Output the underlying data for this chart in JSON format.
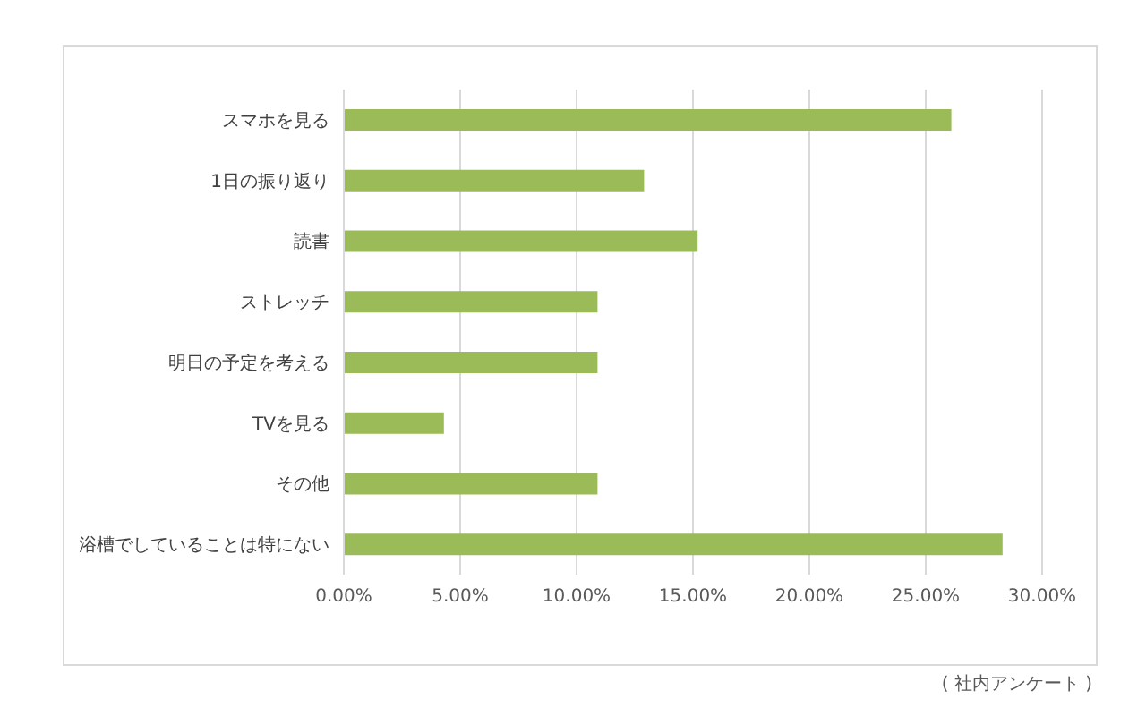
{
  "chart_data": {
    "type": "bar",
    "orientation": "horizontal",
    "categories": [
      "スマホを見る",
      "1日の振り返り",
      "読書",
      "ストレッチ",
      "明日の予定を考える",
      "TVを見る",
      "その他",
      "浴槽でしていることは特にない"
    ],
    "values": [
      26.1,
      12.9,
      15.2,
      10.9,
      10.9,
      4.3,
      10.9,
      28.3
    ],
    "color": "#9bbb59",
    "xlim": [
      0,
      30
    ],
    "xticks": [
      {
        "value": 0,
        "label": "0.00%"
      },
      {
        "value": 5,
        "label": "5.00%"
      },
      {
        "value": 10,
        "label": "10.00%"
      },
      {
        "value": 15,
        "label": "15.00%"
      },
      {
        "value": 20,
        "label": "20.00%"
      },
      {
        "value": 25,
        "label": "25.00%"
      },
      {
        "value": 30,
        "label": "30.00%"
      }
    ],
    "grid": "x",
    "legend": false,
    "annotations": [
      "( 社内アンケート )"
    ]
  }
}
